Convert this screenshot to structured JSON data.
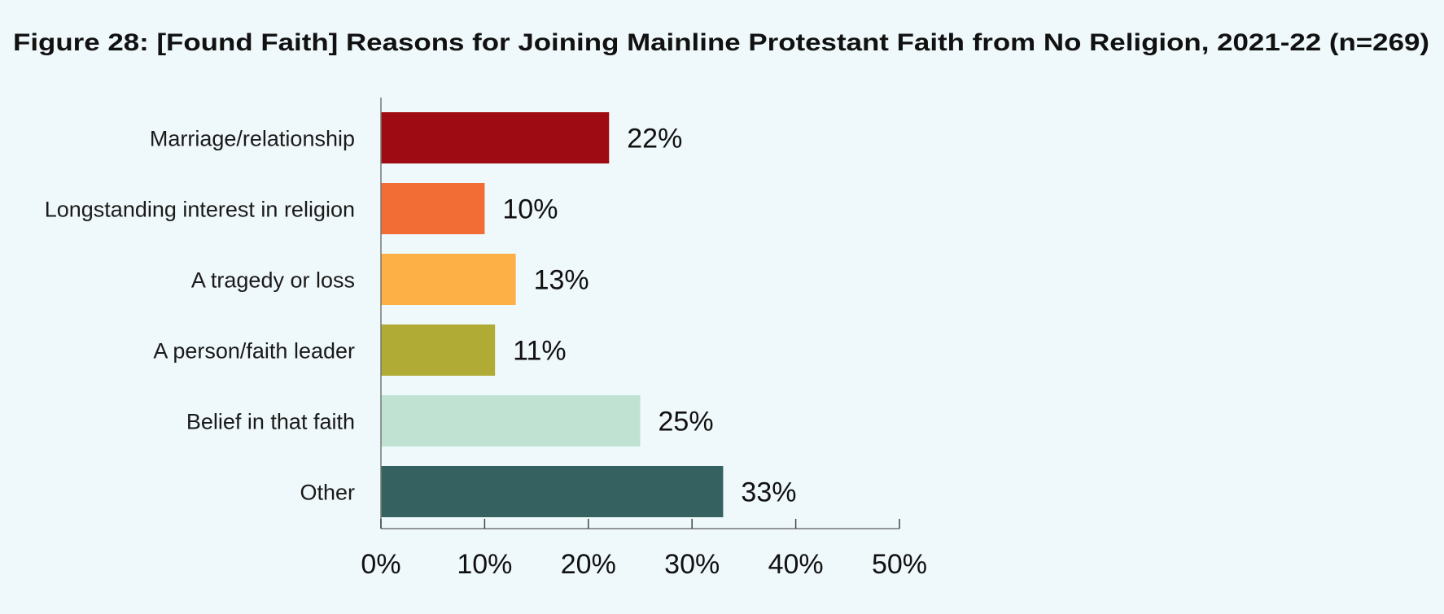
{
  "chart_data": {
    "type": "bar",
    "orientation": "horizontal",
    "title": "Figure 28: [Found Faith] Reasons for Joining Mainline Protestant Faith from No Religion, 2021-22 (n=269)",
    "categories": [
      "Marriage/relationship",
      "Longstanding interest in religion",
      "A tragedy or loss",
      "A person/faith leader",
      "Belief in that faith",
      "Other"
    ],
    "values": [
      22,
      10,
      13,
      11,
      25,
      33
    ],
    "value_labels": [
      "22%",
      "10%",
      "13%",
      "11%",
      "25%",
      "33%"
    ],
    "colors": [
      "#9f0b12",
      "#f26d35",
      "#fcb045",
      "#afab34",
      "#bfe2d2",
      "#356260"
    ],
    "xlabel": "",
    "ylabel": "",
    "xlim": [
      0,
      50
    ],
    "xticks": [
      0,
      10,
      20,
      30,
      40,
      50
    ],
    "xtick_labels": [
      "0%",
      "10%",
      "20%",
      "30%",
      "40%",
      "50%"
    ],
    "grid": false,
    "legend": "none"
  }
}
